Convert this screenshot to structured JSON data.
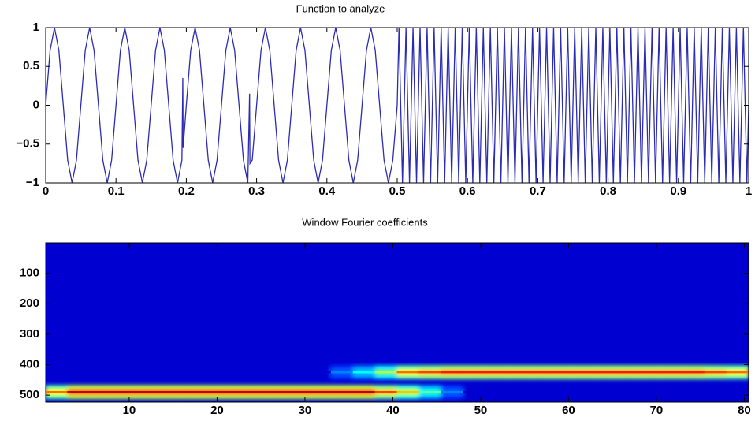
{
  "chart_data": [
    {
      "type": "line",
      "title": "Function to analyze",
      "color": "#2b2bb3",
      "xlim": [
        0,
        1
      ],
      "ylim": [
        -1,
        1
      ],
      "xticks": [
        0,
        0.1,
        0.2,
        0.3,
        0.4,
        0.5,
        0.6,
        0.7,
        0.8,
        0.9,
        1
      ],
      "yticks": [
        {
          "value": -1,
          "label": "−1"
        },
        {
          "value": -0.5,
          "label": "−0.5"
        },
        0,
        0.5,
        1
      ],
      "x": [
        0,
        0.00625,
        0.0125,
        0.01875,
        0.025,
        0.03125,
        0.0375,
        0.04375,
        0.05,
        0.05625,
        0.0625,
        0.06875,
        0.075,
        0.08125,
        0.0875,
        0.09375,
        0.1,
        0.10625,
        0.1125,
        0.11875,
        0.125,
        0.13125,
        0.1375,
        0.14375,
        0.15,
        0.15625,
        0.1625,
        0.16875,
        0.175,
        0.18125,
        0.1875,
        0.19375,
        0.195,
        0.1955,
        0.2,
        0.20625,
        0.2125,
        0.21875,
        0.225,
        0.23125,
        0.2375,
        0.24375,
        0.25,
        0.25625,
        0.2625,
        0.26875,
        0.275,
        0.28125,
        0.2875,
        0.29,
        0.2905,
        0.29375,
        0.3,
        0.30625,
        0.3125,
        0.31875,
        0.325,
        0.33125,
        0.3375,
        0.34375,
        0.35,
        0.35625,
        0.3625,
        0.36875,
        0.375,
        0.38125,
        0.3875,
        0.39375,
        0.4,
        0.40625,
        0.4125,
        0.41875,
        0.425,
        0.43125,
        0.4375,
        0.44375,
        0.45,
        0.45625,
        0.4625,
        0.46875,
        0.475,
        0.48125,
        0.4875,
        0.49375,
        0.5,
        0.5025,
        0.505,
        0.5075,
        0.51,
        0.5125,
        0.515,
        0.5175,
        0.52,
        0.5225,
        0.525,
        0.5275,
        0.53,
        0.5325,
        0.535,
        0.5375,
        0.54,
        0.5425,
        0.545,
        0.5475,
        0.55,
        0.5525,
        0.555,
        0.5575,
        0.56,
        0.5625,
        0.565,
        0.5675,
        0.57,
        0.5725,
        0.575,
        0.5775,
        0.58,
        0.5825,
        0.585,
        0.5875,
        0.59,
        0.5925,
        0.595,
        0.5975,
        0.6,
        0.6025,
        0.605,
        0.6075,
        0.61,
        0.6125,
        0.615,
        0.6175,
        0.62,
        0.6225,
        0.625,
        0.6275,
        0.63,
        0.6325,
        0.635,
        0.6375,
        0.64,
        0.6425,
        0.645,
        0.6475,
        0.65,
        0.6525,
        0.655,
        0.6575,
        0.66,
        0.6625,
        0.665,
        0.6675,
        0.67,
        0.6725,
        0.675,
        0.6775,
        0.68,
        0.6825,
        0.685,
        0.6875,
        0.69,
        0.6925,
        0.695,
        0.6975,
        0.7,
        0.7025,
        0.705,
        0.7075,
        0.71,
        0.7125,
        0.715,
        0.7175,
        0.72,
        0.7225,
        0.725,
        0.7275,
        0.73,
        0.7325,
        0.735,
        0.7375,
        0.74,
        0.7425,
        0.745,
        0.7475,
        0.75,
        0.7525,
        0.755,
        0.7575,
        0.76,
        0.7625,
        0.765,
        0.7675,
        0.77,
        0.7725,
        0.775,
        0.7775,
        0.78,
        0.7825,
        0.785,
        0.7875,
        0.79,
        0.7925,
        0.795,
        0.7975,
        0.8,
        0.8025,
        0.805,
        0.8075,
        0.81,
        0.8125,
        0.815,
        0.8175,
        0.82,
        0.8225,
        0.825,
        0.8275,
        0.83,
        0.8325,
        0.835,
        0.8375,
        0.84,
        0.8425,
        0.845,
        0.8475,
        0.85,
        0.8525,
        0.855,
        0.8575,
        0.86,
        0.8625,
        0.865,
        0.8675,
        0.87,
        0.8725,
        0.875,
        0.8775,
        0.88,
        0.8825,
        0.885,
        0.8875,
        0.89,
        0.8925,
        0.895,
        0.8975,
        0.9,
        0.9025,
        0.905,
        0.9075,
        0.91,
        0.9125,
        0.915,
        0.9175,
        0.92,
        0.9225,
        0.925,
        0.9275,
        0.93,
        0.9325,
        0.935,
        0.9375,
        0.94,
        0.9425,
        0.945,
        0.9475,
        0.95,
        0.9525,
        0.955,
        0.9575,
        0.96,
        0.9625,
        0.965,
        0.9675,
        0.97,
        0.9725,
        0.975,
        0.9775,
        0.98,
        0.9825,
        0.985,
        0.9875,
        0.99,
        0.9925,
        0.995,
        0.9975,
        1
      ],
      "values": [
        0,
        0.707,
        1,
        0.707,
        0,
        -0.707,
        -1,
        -0.707,
        0,
        0.707,
        1,
        0.707,
        0,
        -0.707,
        -1,
        -0.707,
        0,
        0.707,
        1,
        0.707,
        0,
        -0.707,
        -1,
        -0.707,
        0,
        0.707,
        1,
        0.707,
        0,
        -0.707,
        -1,
        -0.707,
        0.35,
        -0.55,
        0,
        0.707,
        1,
        0.707,
        0,
        -0.707,
        -1,
        -0.707,
        0,
        0.707,
        1,
        0.707,
        0,
        -0.707,
        -1,
        0.15,
        -0.75,
        -0.707,
        0,
        0.707,
        1,
        0.707,
        0,
        -0.707,
        -1,
        -0.707,
        0,
        0.707,
        1,
        0.707,
        0,
        -0.707,
        -1,
        -0.707,
        0,
        0.707,
        1,
        0.707,
        0,
        -0.707,
        -1,
        -0.707,
        0,
        0.707,
        1,
        0.707,
        0,
        -0.707,
        -1,
        -0.707,
        0,
        1,
        0,
        -1,
        0,
        1,
        0,
        -1,
        0,
        1,
        0,
        -1,
        0,
        1,
        0,
        -1,
        0,
        1,
        0,
        -1,
        0,
        1,
        0,
        -1,
        0,
        1,
        0,
        -1,
        0,
        1,
        0,
        -1,
        0,
        1,
        0,
        -1,
        0,
        1,
        0,
        -1,
        0,
        1,
        0,
        -1,
        0,
        1,
        0,
        -1,
        0,
        1,
        0,
        -1,
        0,
        1,
        0,
        -1,
        0,
        1,
        0,
        -1,
        0,
        1,
        0,
        -1,
        0,
        1,
        0,
        -1,
        0,
        1,
        0,
        -1,
        0,
        1,
        0,
        -1,
        0,
        1,
        0,
        -1,
        0,
        1,
        0,
        -1,
        0,
        1,
        0,
        -1,
        0,
        1,
        0,
        -1,
        0,
        1,
        0,
        -1,
        0,
        1,
        0,
        -1,
        0,
        1,
        0,
        -1,
        0,
        1,
        0,
        -1,
        0,
        1,
        0,
        -1,
        0,
        1,
        0,
        -1,
        0,
        1,
        0,
        -1,
        0,
        1,
        0,
        -1,
        0,
        1,
        0,
        -1,
        0,
        1,
        0,
        -1,
        0,
        1,
        0,
        -1,
        0,
        1,
        0,
        -1,
        0,
        1,
        0,
        -1,
        0,
        1,
        0,
        -1,
        0,
        1,
        0,
        -1,
        0,
        1,
        0,
        -1,
        0,
        1,
        0,
        -1,
        0,
        1,
        0,
        -1,
        0,
        1,
        0,
        -1,
        0,
        1,
        0,
        -1,
        0,
        1,
        0,
        -1,
        0,
        1,
        0,
        -1,
        0,
        1,
        0,
        -1,
        0,
        1,
        0,
        -1,
        0,
        1,
        0,
        -1,
        0,
        1,
        0,
        -1,
        0,
        1,
        0,
        -1,
        0
      ]
    },
    {
      "type": "heatmap",
      "title": "Window Fourier coefficients",
      "colormap": "jet",
      "invert_y": true,
      "xlim": [
        0.5,
        80.5
      ],
      "ylim": [
        0,
        523
      ],
      "xticks": [
        10,
        20,
        30,
        40,
        50,
        60,
        70,
        80
      ],
      "yticks": [
        100,
        200,
        300,
        400,
        500
      ],
      "x": [
        1.75,
        4.25,
        6.75,
        9.25,
        11.75,
        14.25,
        16.75,
        19.25,
        21.75,
        24.25,
        26.75,
        29.25,
        31.75,
        34.25,
        36.75,
        39.25,
        41.75,
        44.25,
        46.75,
        49.25,
        51.75,
        54.25,
        56.75,
        59.25,
        61.75,
        64.25,
        66.75,
        69.25,
        71.75,
        74.25,
        76.75,
        79.25
      ],
      "y": [
        425,
        490
      ],
      "values": [
        [
          0,
          0,
          0,
          0,
          0,
          0,
          0,
          0,
          0,
          0,
          0,
          0,
          0,
          0.2,
          0.35,
          0.55,
          0.8,
          0.85,
          0.9,
          0.9,
          0.9,
          0.9,
          0.9,
          0.9,
          0.9,
          0.9,
          0.9,
          0.9,
          0.9,
          0.9,
          0.85,
          0.8
        ],
        [
          0.8,
          1,
          1,
          1,
          1,
          1,
          1,
          1,
          1,
          1,
          1,
          1,
          1,
          1,
          1,
          0.85,
          0.7,
          0.45,
          0.2,
          0,
          0,
          0,
          0,
          0,
          0,
          0,
          0,
          0,
          0,
          0,
          0,
          0
        ]
      ]
    }
  ]
}
